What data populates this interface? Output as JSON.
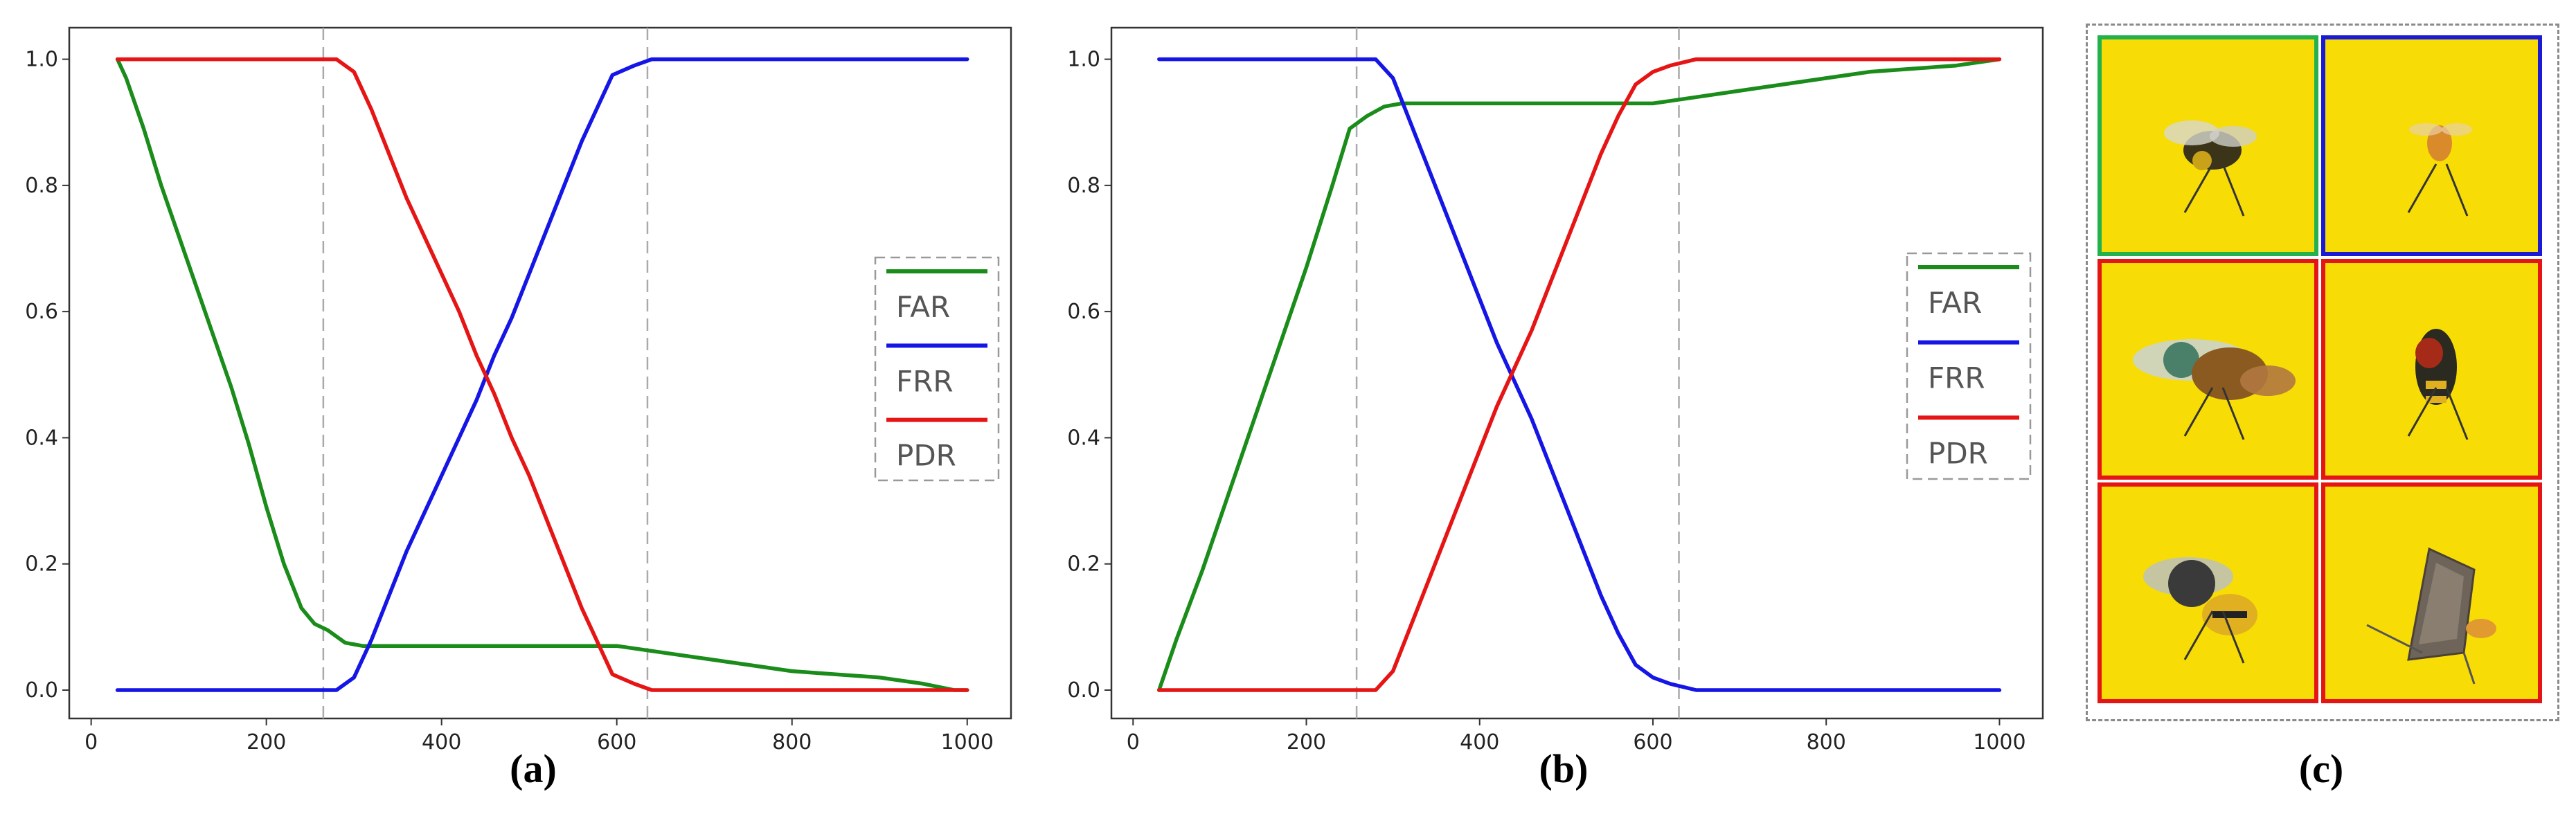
{
  "chart_data": [
    {
      "type": "line",
      "panel_label": "(a)",
      "xlim": [
        0,
        1000
      ],
      "ylim": [
        0,
        1.0
      ],
      "xticks": [
        0,
        200,
        400,
        600,
        800,
        1000
      ],
      "yticks": [
        0.0,
        0.2,
        0.4,
        0.6,
        0.8,
        1.0
      ],
      "xtick_labels": [
        "0",
        "200",
        "400",
        "600",
        "800",
        "1000"
      ],
      "ytick_labels": [
        "0.0",
        "0.2",
        "0.4",
        "0.6",
        "0.8",
        "1.0"
      ],
      "vlines": [
        265,
        635
      ],
      "legend": [
        "FAR",
        "FRR",
        "PDR"
      ],
      "legend_position": "center-right",
      "series": [
        {
          "name": "FAR",
          "color": "#1a8c1a",
          "x": [
            30,
            40,
            60,
            80,
            100,
            120,
            140,
            160,
            180,
            200,
            220,
            240,
            255,
            270,
            290,
            310,
            600,
            650,
            700,
            750,
            800,
            850,
            900,
            950,
            985,
            1000
          ],
          "y": [
            1.0,
            0.97,
            0.89,
            0.8,
            0.72,
            0.64,
            0.56,
            0.48,
            0.39,
            0.29,
            0.2,
            0.13,
            0.105,
            0.095,
            0.075,
            0.07,
            0.07,
            0.06,
            0.05,
            0.04,
            0.03,
            0.025,
            0.02,
            0.01,
            0.0,
            0.0
          ]
        },
        {
          "name": "FRR",
          "color": "#1515e6",
          "x": [
            30,
            280,
            300,
            320,
            340,
            360,
            380,
            400,
            420,
            440,
            460,
            480,
            500,
            520,
            540,
            560,
            580,
            595,
            620,
            640,
            1000
          ],
          "y": [
            0.0,
            0.0,
            0.02,
            0.08,
            0.15,
            0.22,
            0.28,
            0.34,
            0.4,
            0.46,
            0.53,
            0.59,
            0.66,
            0.73,
            0.8,
            0.87,
            0.93,
            0.975,
            0.99,
            1.0,
            1.0
          ]
        },
        {
          "name": "PDR",
          "color": "#e61515",
          "x": [
            30,
            280,
            300,
            320,
            340,
            360,
            380,
            400,
            420,
            440,
            460,
            480,
            500,
            520,
            540,
            560,
            580,
            595,
            620,
            640,
            1000
          ],
          "y": [
            1.0,
            1.0,
            0.98,
            0.92,
            0.85,
            0.78,
            0.72,
            0.66,
            0.6,
            0.53,
            0.47,
            0.4,
            0.34,
            0.27,
            0.2,
            0.13,
            0.07,
            0.025,
            0.01,
            0.0,
            0.0
          ]
        }
      ]
    },
    {
      "type": "line",
      "panel_label": "(b)",
      "xlim": [
        0,
        1000
      ],
      "ylim": [
        0,
        1.0
      ],
      "xticks": [
        0,
        200,
        400,
        600,
        800,
        1000
      ],
      "yticks": [
        0.0,
        0.2,
        0.4,
        0.6,
        0.8,
        1.0
      ],
      "xtick_labels": [
        "0",
        "200",
        "400",
        "600",
        "800",
        "1000"
      ],
      "ytick_labels": [
        "0.0",
        "0.2",
        "0.4",
        "0.6",
        "0.8",
        "1.0"
      ],
      "vlines": [
        258,
        630
      ],
      "legend": [
        "FAR",
        "FRR",
        "PDR"
      ],
      "legend_position": "center-right",
      "series": [
        {
          "name": "FAR",
          "color": "#1a8c1a",
          "x": [
            30,
            50,
            80,
            110,
            140,
            170,
            200,
            230,
            250,
            270,
            290,
            310,
            600,
            650,
            700,
            750,
            800,
            850,
            900,
            950,
            1000
          ],
          "y": [
            0.0,
            0.08,
            0.19,
            0.31,
            0.43,
            0.55,
            0.67,
            0.8,
            0.89,
            0.91,
            0.925,
            0.93,
            0.93,
            0.94,
            0.95,
            0.96,
            0.97,
            0.98,
            0.985,
            0.99,
            1.0
          ]
        },
        {
          "name": "FRR",
          "color": "#1515e6",
          "x": [
            30,
            280,
            300,
            320,
            340,
            360,
            380,
            400,
            420,
            440,
            460,
            480,
            500,
            520,
            540,
            560,
            580,
            600,
            620,
            650,
            1000
          ],
          "y": [
            1.0,
            1.0,
            0.97,
            0.9,
            0.83,
            0.76,
            0.69,
            0.62,
            0.55,
            0.49,
            0.43,
            0.36,
            0.29,
            0.22,
            0.15,
            0.09,
            0.04,
            0.02,
            0.01,
            0.0,
            0.0
          ]
        },
        {
          "name": "PDR",
          "color": "#e61515",
          "x": [
            30,
            280,
            300,
            320,
            340,
            360,
            380,
            400,
            420,
            440,
            460,
            480,
            500,
            520,
            540,
            560,
            580,
            600,
            620,
            650,
            1000
          ],
          "y": [
            0.0,
            0.0,
            0.03,
            0.1,
            0.17,
            0.24,
            0.31,
            0.38,
            0.45,
            0.51,
            0.57,
            0.64,
            0.71,
            0.78,
            0.85,
            0.91,
            0.96,
            0.98,
            0.99,
            1.0,
            1.0
          ]
        }
      ]
    }
  ],
  "panel_c": {
    "label": "(c)",
    "cells": [
      {
        "name": "cell-insect-1",
        "border": "#22b14c",
        "subject": "insect-photo"
      },
      {
        "name": "cell-insect-2",
        "border": "#1a1ad6",
        "subject": "insect-photo"
      },
      {
        "name": "cell-insect-3",
        "border": "#e61515",
        "subject": "insect-photo"
      },
      {
        "name": "cell-insect-4",
        "border": "#e61515",
        "subject": "insect-photo"
      },
      {
        "name": "cell-insect-5",
        "border": "#e61515",
        "subject": "insect-photo"
      },
      {
        "name": "cell-insect-6",
        "border": "#e61515",
        "subject": "moth-photo"
      }
    ]
  }
}
